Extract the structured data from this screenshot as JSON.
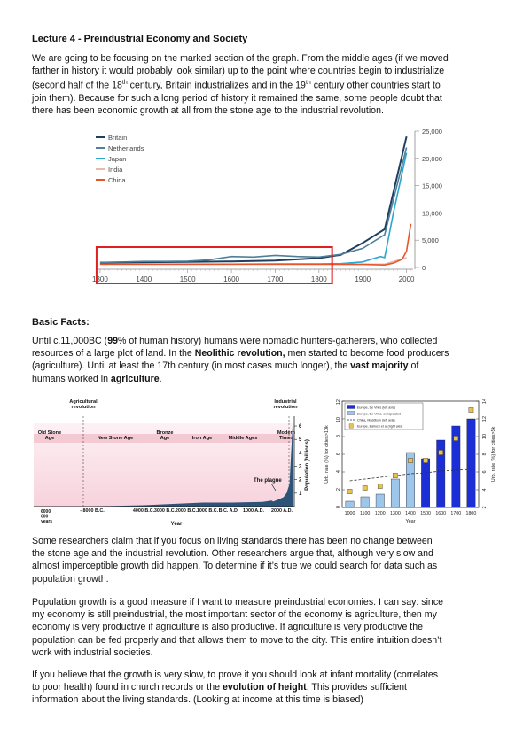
{
  "lecture_title": "Lecture 4 - Preindustrial Economy and Society",
  "intro": {
    "line1": "We are going to be focusing on the marked section of the graph. From the middle ages (if we moved",
    "line2": "farther in history it would probably look similar) up to the point where countries begin to industrialize",
    "line3a": "(second half of the 18",
    "sup1": "th",
    "line3b": " century, Britain industrializes and in the 19",
    "sup2": "th",
    "line3c": " century other countries start to",
    "line4": "join them). Because for such a long period of history it remained the same, some people doubt that",
    "line5": "there has been economic growth at all from the stone age to the industrial revolution."
  },
  "chart_data": [
    {
      "type": "line",
      "series": [
        {
          "name": "Britain",
          "color": "#1f3f5e",
          "x": [
            1300,
            1400,
            1500,
            1600,
            1700,
            1800,
            1850,
            1900,
            1950,
            2000
          ],
          "values": [
            900,
            950,
            1000,
            1100,
            1250,
            1700,
            2300,
            4500,
            7000,
            24000
          ]
        },
        {
          "name": "Netherlands",
          "color": "#4f7f9a",
          "x": [
            1300,
            1400,
            1450,
            1500,
            1550,
            1600,
            1650,
            1700,
            1750,
            1800,
            1850,
            1900,
            1950,
            2000
          ],
          "values": [
            900,
            1100,
            1100,
            1150,
            1400,
            2000,
            1900,
            2200,
            2000,
            1900,
            2400,
            3500,
            6000,
            22000
          ]
        },
        {
          "name": "Japan",
          "color": "#2aa7cf",
          "x": [
            1300,
            1600,
            1700,
            1800,
            1850,
            1900,
            1940,
            1950,
            1970,
            2000
          ],
          "values": [
            600,
            600,
            650,
            650,
            700,
            1000,
            2000,
            1800,
            10000,
            21000
          ]
        },
        {
          "name": "India",
          "color": "#e8b8a8",
          "x": [
            1300,
            1600,
            1800,
            1900,
            1950,
            2000
          ],
          "values": [
            600,
            600,
            550,
            600,
            600,
            1800
          ]
        },
        {
          "name": "China",
          "color": "#e8552d",
          "x": [
            1300,
            1500,
            1700,
            1800,
            1900,
            1950,
            1970,
            1990,
            2000,
            2010
          ],
          "values": [
            600,
            600,
            600,
            600,
            550,
            450,
            800,
            1500,
            3000,
            8000
          ]
        }
      ],
      "xlim": [
        1290,
        2015
      ],
      "ylim": [
        0,
        25000
      ],
      "xticks": [
        "1300",
        "1400",
        "1500",
        "1600",
        "1700",
        "1800",
        "1900",
        "2000"
      ],
      "yticks": [
        "0",
        "5,000",
        "10,000",
        "15,000",
        "20,000",
        "25,000"
      ],
      "highlight": {
        "x_from": 1300,
        "x_to": 1830,
        "color": "#e02020"
      }
    },
    {
      "type": "area",
      "series": [
        {
          "name": "",
          "x": [
            -10000,
            -4000,
            -3000,
            -2000,
            -1000,
            0,
            1000,
            1300,
            1350,
            1500,
            1700,
            1800,
            1900,
            2000
          ],
          "values": [
            0.01,
            0.05,
            0.1,
            0.2,
            0.3,
            0.3,
            0.35,
            0.45,
            0.37,
            0.5,
            0.7,
            1,
            1.7,
            6
          ]
        }
      ],
      "ylabel": "Population (billions)",
      "yticks": [
        "1",
        "2",
        "3",
        "4",
        "5",
        "6"
      ],
      "xlabel": "Year",
      "xticks": [
        "- 8000 B.C.",
        "4000 B.C.",
        "3000 B.C.",
        "2000 B.C.",
        "1000 B.C.",
        "B.C. A.D.",
        "1000 A.D.",
        "2000 A.D."
      ],
      "xtick_first": "6000\n000\nyears",
      "top_labels": {
        "agri": "Agricultural\nrevolution",
        "ind": "Industrial\nrevolution"
      },
      "eras": [
        "Old Stone\nAge",
        "New Stone Age",
        "Bronze\nAge",
        "Iron Age",
        "Middle Ages",
        "Modern\nTimes"
      ],
      "annotation": "The plague",
      "colors": {
        "sky": "#f7d2dd",
        "area": "#2c5378"
      }
    },
    {
      "type": "bar",
      "categories": [
        "1000",
        "1100",
        "1200",
        "1300",
        "1400",
        "1500",
        "1600",
        "1700",
        "1800"
      ],
      "series": [
        {
          "name": "Europe, De Vries (left axis)",
          "color": "#1c2fd6",
          "values": [
            null,
            null,
            null,
            null,
            null,
            5.5,
            7.6,
            9.2,
            10.0
          ]
        },
        {
          "name": "Europe, De Vries, extrapolated",
          "color": "#9ec6ea",
          "values": [
            0.7,
            1.2,
            1.5,
            3.2,
            6.2,
            null,
            null,
            null,
            null
          ]
        },
        {
          "name": "China, Maddison (left axis)",
          "color": "#333333",
          "values": [
            3.0,
            3.2,
            3.4,
            3.6,
            3.8,
            3.9,
            4.1,
            4.2,
            4.3
          ]
        },
        {
          "name": "Europe, Bairoch et al (right axis)",
          "color": "#e8c24a",
          "values": [
            3.8,
            4.2,
            4.4,
            5.6,
            7.3,
            7.3,
            8.2,
            9.8,
            13.0
          ]
        }
      ],
      "ylabel_left": "Urb. rate (%) for cities>10k",
      "ylabel_right": "Urb. rate (%) for cities>5k",
      "yticks_left": [
        "0",
        "2",
        "4",
        "6",
        "8",
        "10",
        "12"
      ],
      "yticks_right": [
        "2",
        "4",
        "6",
        "8",
        "10",
        "12",
        "14"
      ],
      "xlabel": "Year",
      "ylim_left": [
        0,
        12
      ],
      "ylim_right": [
        2,
        14
      ]
    }
  ],
  "basic_facts_heading": "Basic Facts:",
  "facts": {
    "l1a": "Until c.11,000BC (",
    "l1b": "99",
    "l1c": "% of human history) humans were nomadic hunters-gatherers, who collected",
    "l2a": "resources of a large plot of land. In the ",
    "l2b": "Neolithic revolution,",
    "l2c": " men started to become food producers",
    "l3": "(agriculture). Until at least the 17th century (in most cases much longer), the ",
    "l3b": "vast majority",
    "l3c": " of",
    "l4a": "humans worked in ",
    "l4b": "agriculture",
    "l4c": "."
  },
  "para2": {
    "l1": "Some researchers claim that if you focus on living standards there has been no change between",
    "l2": "the stone age and the industrial revolution. Other researchers argue that, although very slow and",
    "l3": "almost imperceptible growth did happen. To determine if it’s true we could search for data such as",
    "l4": "population growth."
  },
  "para3": {
    "l1": "Population growth is a good measure if I want to measure preindustrial economies. I can say: since",
    "l2": "my economy is still preindustrial, the most important sector of the economy is agriculture, then my",
    "l3": "economy is very productive if agriculture is also productive. If agriculture is very productive the",
    "l4": "population can be fed properly and that allows them to move to the city. This entire intuition doesn’t",
    "l5": "work with industrial societies."
  },
  "para4": {
    "l1": "If you believe that the growth is very slow, to prove it you should look at infant mortality (correlates",
    "l2a": "to poor health) found in church records or the ",
    "l2b": "evolution of height",
    "l2c": ". This provides sufficient",
    "l3": "information about the living standards. (Looking at income at this time is biased)"
  }
}
